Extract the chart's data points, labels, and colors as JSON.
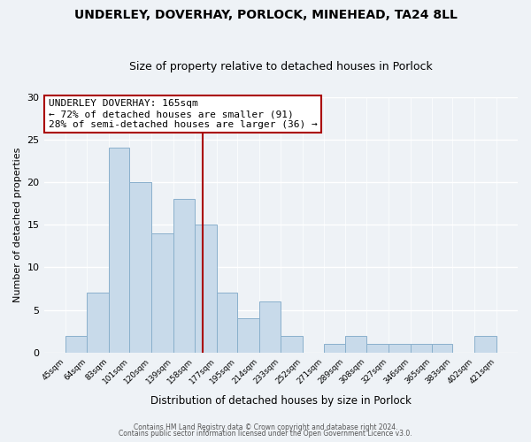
{
  "title": "UNDERLEY, DOVERHAY, PORLOCK, MINEHEAD, TA24 8LL",
  "subtitle": "Size of property relative to detached houses in Porlock",
  "xlabel": "Distribution of detached houses by size in Porlock",
  "ylabel": "Number of detached properties",
  "bar_color": "#c8daea",
  "bar_edge_color": "#8ab0cc",
  "vline_x": 165,
  "vline_color": "#aa0000",
  "annotation_title": "UNDERLEY DOVERHAY: 165sqm",
  "annotation_line1": "← 72% of detached houses are smaller (91)",
  "annotation_line2": "28% of semi-detached houses are larger (36) →",
  "annotation_box_color": "#ffffff",
  "annotation_box_edge": "#aa0000",
  "bins": [
    45,
    64,
    83,
    101,
    120,
    139,
    158,
    177,
    195,
    214,
    233,
    252,
    271,
    289,
    308,
    327,
    346,
    365,
    383,
    402,
    421
  ],
  "counts": [
    2,
    7,
    24,
    20,
    14,
    18,
    15,
    7,
    4,
    6,
    2,
    0,
    1,
    2,
    1,
    1,
    1,
    1,
    0,
    2
  ],
  "ylim": [
    0,
    30
  ],
  "yticks": [
    0,
    5,
    10,
    15,
    20,
    25,
    30
  ],
  "footer_line1": "Contains HM Land Registry data © Crown copyright and database right 2024.",
  "footer_line2": "Contains public sector information licensed under the Open Government Licence v3.0.",
  "bg_color": "#eef2f6",
  "grid_color": "#ffffff"
}
